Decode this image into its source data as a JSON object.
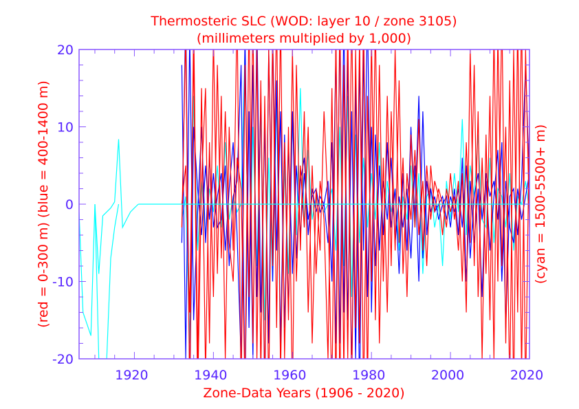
{
  "chart_data": {
    "type": "line",
    "title": "Thermosteric SLC (WOD: layer 10 / zone 3105)",
    "subtitle": "(millimeters multiplied by 1,000)",
    "xlabel": "Zone-Data Years (1906 - 2020)",
    "ylabel": "(red = 0-300 m)  (blue = 400-1400 m)",
    "ylabel_right": "(cyan = 1500-5500+ m)",
    "xlim": [
      1906,
      2020
    ],
    "ylim": [
      -20,
      20
    ],
    "x_ticks": [
      "1920",
      "1940",
      "1960",
      "1980",
      "2000",
      "2020"
    ],
    "y_ticks": [
      "20",
      "10",
      "0",
      "-10",
      "-20"
    ],
    "grid": false,
    "colors": {
      "red": "#ff0000",
      "blue": "#0000ff",
      "cyan": "#00ffff",
      "axis": "#8855ff",
      "ticklabel": "#5522ff"
    },
    "series": [
      {
        "name": "cyan",
        "color": "#00ffff",
        "lines": [
          {
            "start": 1906,
            "values": [
              -1,
              -14,
              -15.5,
              -17,
              0,
              -9,
              -1.5,
              -1,
              -0.5,
              0.3,
              8.4,
              -3,
              -2,
              -1,
              -0.5,
              0
            ]
          },
          {
            "start": 1910,
            "values": [
              0,
              -20,
              -20,
              -20,
              -7,
              -3,
              0
            ]
          },
          {
            "start": 1932,
            "values": [
              -2,
              1,
              -18,
              14,
              -6,
              3,
              -4,
              2,
              -1,
              5,
              -3,
              8,
              -2,
              1,
              -1,
              0,
              20,
              -14,
              10,
              -8,
              12,
              -15,
              6,
              -10,
              14,
              -20,
              5,
              -9,
              11,
              -4,
              15,
              -3,
              7,
              -2,
              1,
              0,
              -1,
              0,
              2,
              -6,
              10,
              -8,
              14,
              -12,
              9,
              -5,
              6,
              -3,
              4,
              -2,
              8,
              -4,
              3,
              -1,
              2,
              -6,
              1,
              -2,
              5,
              -3,
              4,
              -9,
              1,
              2,
              -3,
              0,
              -8,
              3,
              -2,
              4,
              -1,
              11,
              -4,
              5,
              1,
              9,
              -2,
              -3,
              6,
              -5,
              2,
              1,
              -3,
              4,
              -6,
              1,
              0,
              3,
              -1
            ]
          }
        ]
      },
      {
        "name": "blue",
        "color": "#0000ff",
        "lines": [
          {
            "start": 1932,
            "values": [
              18,
              -20,
              22,
              -15,
              -1,
              10,
              -5,
              6,
              -3,
              1,
              4,
              -6,
              2,
              8,
              -4,
              -20,
              22,
              -16,
              18,
              -12,
              14,
              -25,
              20,
              -10,
              16,
              -18,
              9,
              -14,
              12,
              -7,
              3,
              6,
              -4,
              2,
              -1,
              1,
              0,
              -5,
              8,
              -18,
              22,
              -14,
              19,
              -22,
              16,
              -25,
              20,
              -12,
              10,
              -8,
              5,
              -4,
              8,
              -3,
              2,
              -9,
              4,
              -6,
              10,
              -2,
              14,
              -7,
              3,
              -1,
              1,
              -2,
              0,
              1,
              -3,
              2,
              -4,
              6,
              -10,
              3,
              -5,
              2,
              -12,
              4,
              1,
              3,
              -2,
              8,
              -16,
              1,
              2,
              -4,
              3,
              18,
              2
            ]
          },
          {
            "start": 1932,
            "values": [
              -5,
              25,
              -24,
              10,
              2,
              -4,
              5,
              -2,
              4,
              -3,
              -2,
              5,
              -8,
              1,
              3,
              18,
              -25,
              12,
              -20,
              24,
              -14,
              10,
              -18,
              22,
              -6,
              12,
              -16,
              8,
              -9,
              5,
              -4,
              4,
              -2,
              1,
              2,
              -1,
              0,
              3,
              -10,
              20,
              -18,
              24,
              -15,
              12,
              -20,
              18,
              -6,
              25,
              -14,
              9,
              -6,
              3,
              -2,
              6,
              -5,
              1,
              -3,
              2,
              -7,
              5,
              -10,
              12,
              -4,
              2,
              -1,
              0,
              1,
              -2,
              1,
              -1,
              2,
              -3,
              5,
              -7,
              1,
              4,
              -2,
              3,
              -6,
              1,
              7,
              -10,
              3,
              -3,
              -5,
              2,
              -2,
              1,
              4
            ]
          }
        ]
      },
      {
        "name": "red",
        "color": "#ff0000",
        "lines": [
          {
            "start": 1932,
            "values": [
              -3,
              22,
              -25,
              24,
              -20,
              15,
              -22,
              8,
              -12,
              18,
              -7,
              12,
              -5,
              -10,
              6,
              2,
              -24,
              25,
              -18,
              20,
              -22,
              14,
              -25,
              22,
              -16,
              24,
              -20,
              10,
              -25,
              18,
              -6,
              12,
              -14,
              5,
              -9,
              3,
              -2,
              -20,
              15,
              -24,
              25,
              -22,
              24,
              -25,
              20,
              -18,
              25,
              -24,
              22,
              -15,
              18,
              -10,
              14,
              -8,
              20,
              -5,
              6,
              -12,
              9,
              -3,
              11,
              -6,
              5,
              -2,
              3,
              1,
              -4,
              2,
              -1,
              1,
              -6,
              4,
              -14,
              20,
              -8,
              12,
              -20,
              9,
              -15,
              22,
              -10,
              25,
              -18,
              16,
              -25,
              24,
              -22,
              20,
              -3
            ]
          },
          {
            "start": 1932,
            "values": [
              0,
              5,
              -14,
              20,
              -25,
              3,
              15,
              -18,
              22,
              -9,
              14,
              -20,
              10,
              -6,
              25,
              -25,
              18,
              -12,
              24,
              -20,
              16,
              -24,
              20,
              -8,
              25,
              -22,
              8,
              -15,
              20,
              -10,
              5,
              -3,
              10,
              -18,
              2,
              -6,
              12,
              0,
              -25,
              22,
              -24,
              18,
              -20,
              25,
              -16,
              22,
              -25,
              14,
              -10,
              24,
              -18,
              6,
              -14,
              12,
              -6,
              16,
              -9,
              4,
              -2,
              7,
              -4,
              3,
              -8,
              5,
              -1,
              2,
              0,
              -3,
              4,
              -2,
              3,
              -10,
              8,
              -5,
              18,
              -12,
              6,
              -9,
              14,
              -20,
              22,
              -8,
              10,
              -24,
              20,
              -14,
              25,
              -25,
              12
            ]
          }
        ]
      },
      {
        "name": "cyan zero baseline",
        "color": "#00ffff",
        "lines": [
          {
            "start": 1921,
            "x": [
              1921,
              2020
            ],
            "values": [
              0,
              0
            ]
          }
        ]
      }
    ]
  }
}
